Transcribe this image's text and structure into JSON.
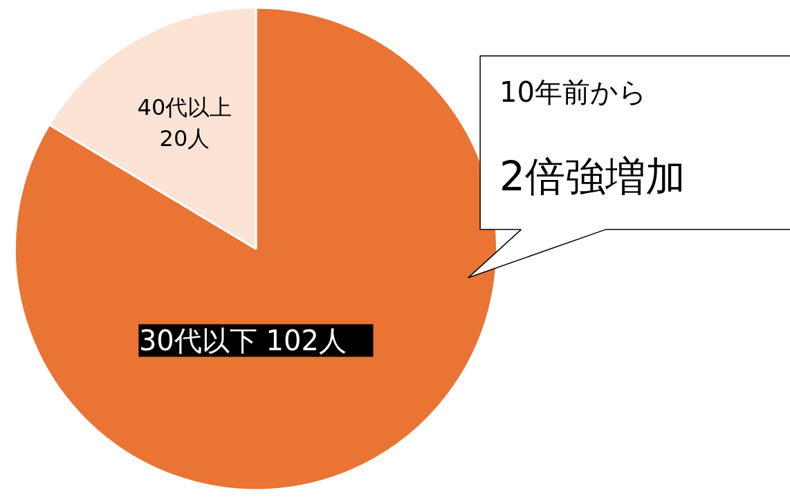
{
  "chart_data": {
    "type": "pie",
    "categories": [
      "30代以下",
      "40代以上"
    ],
    "values": [
      102,
      20
    ],
    "colors": [
      "#e97434",
      "#fbe3d6"
    ],
    "value_labels": [
      "102人",
      "20人"
    ],
    "annotations": [
      "10年前から",
      "2倍強増加"
    ]
  }
}
